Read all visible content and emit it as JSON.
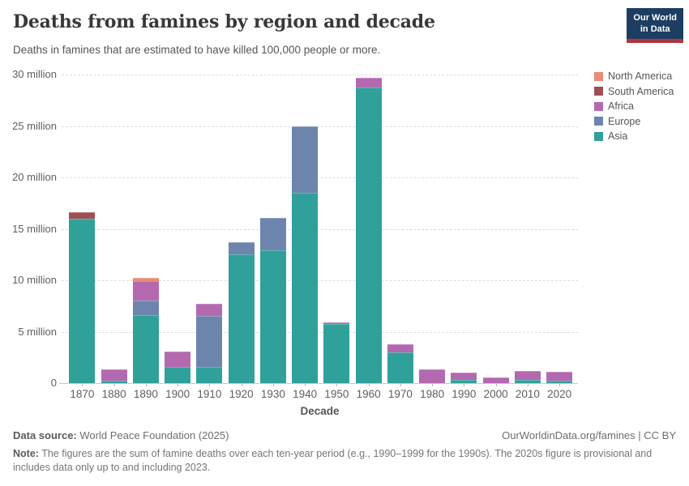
{
  "header": {
    "title": "Deaths from famines by region and decade",
    "subtitle": "Deaths in famines that are estimated to have killed 100,000 people or more.",
    "logo": {
      "line1": "Our World",
      "line2": "in Data"
    }
  },
  "chart_data": {
    "type": "bar",
    "stacked": true,
    "title": "Deaths from famines by region and decade",
    "xlabel": "Decade",
    "ylabel": "",
    "unit": "deaths",
    "ylim_millions": [
      0,
      30
    ],
    "grid": "dashed horizontal",
    "legend_position": "top-right",
    "categories": [
      "1870",
      "1880",
      "1890",
      "1900",
      "1910",
      "1920",
      "1930",
      "1940",
      "1950",
      "1960",
      "1970",
      "1980",
      "1990",
      "2000",
      "2010",
      "2020"
    ],
    "series": [
      {
        "name": "Asia",
        "color": "#30a09a",
        "values_millions": [
          16.0,
          0.2,
          6.6,
          1.55,
          1.55,
          12.5,
          12.9,
          18.5,
          5.75,
          28.75,
          3.0,
          0,
          0.35,
          0,
          0.35,
          0.2
        ]
      },
      {
        "name": "Europe",
        "color": "#6d85ad",
        "values_millions": [
          0,
          0,
          1.4,
          0,
          4.95,
          1.2,
          3.2,
          6.45,
          0,
          0,
          0,
          0,
          0,
          0,
          0,
          0
        ]
      },
      {
        "name": "Africa",
        "color": "#b468af",
        "values_millions": [
          0,
          1.15,
          1.9,
          1.5,
          1.25,
          0,
          0,
          0,
          0.15,
          0.95,
          0.75,
          1.35,
          0.7,
          0.55,
          0.85,
          0.9
        ]
      },
      {
        "name": "South America",
        "color": "#a04e53",
        "values_millions": [
          0.6,
          0,
          0,
          0,
          0,
          0,
          0,
          0,
          0,
          0,
          0,
          0,
          0,
          0,
          0,
          0
        ]
      },
      {
        "name": "North America",
        "color": "#e88b72",
        "values_millions": [
          0,
          0,
          0.3,
          0,
          0,
          0,
          0,
          0,
          0,
          0,
          0,
          0,
          0,
          0,
          0,
          0
        ]
      }
    ],
    "legend": [
      {
        "name": "North America",
        "color": "#e88b72"
      },
      {
        "name": "South America",
        "color": "#a04e53"
      },
      {
        "name": "Africa",
        "color": "#b468af"
      },
      {
        "name": "Europe",
        "color": "#6d85ad"
      },
      {
        "name": "Asia",
        "color": "#30a09a"
      }
    ],
    "y_ticks": [
      {
        "value_millions": 0,
        "label": "0"
      },
      {
        "value_millions": 5,
        "label": "5 million"
      },
      {
        "value_millions": 10,
        "label": "10 million"
      },
      {
        "value_millions": 15,
        "label": "15 million"
      },
      {
        "value_millions": 20,
        "label": "20 million"
      },
      {
        "value_millions": 25,
        "label": "25 million"
      },
      {
        "value_millions": 30,
        "label": "30 million"
      }
    ]
  },
  "footer": {
    "datasource_label": "Data source:",
    "datasource_value": "World Peace Foundation (2025)",
    "attribution": "OurWorldinData.org/famines | CC BY",
    "note_label": "Note:",
    "note_text": "The figures are the sum of famine deaths over each ten-year period (e.g., 1990–1999 for the 1990s). The 2020s figure is provisional and includes data only up to and including 2023."
  }
}
